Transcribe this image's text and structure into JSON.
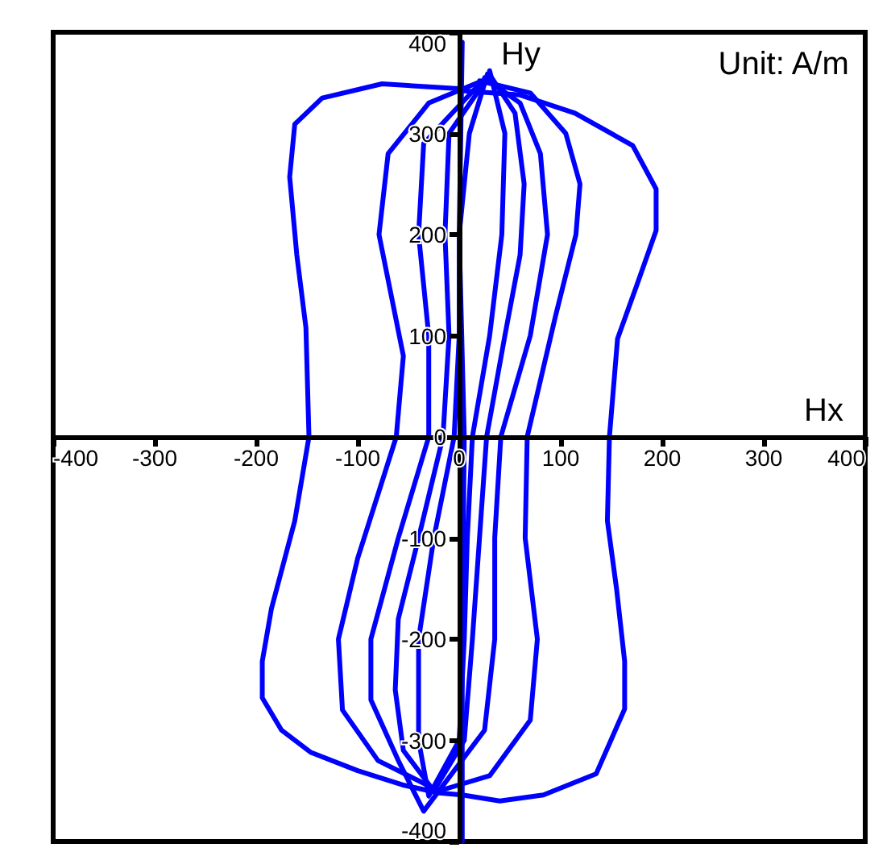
{
  "chart_data": {
    "type": "line",
    "xlabel": "Hx",
    "ylabel": "Hy",
    "annotations": [
      "Unit: A/m"
    ],
    "xlim": [
      -400,
      400
    ],
    "ylim": [
      -400,
      400
    ],
    "xticks": [
      -400,
      -300,
      -200,
      -100,
      0,
      100,
      200,
      300,
      400
    ],
    "yticks": [
      -400,
      -300,
      -200,
      -100,
      0,
      100,
      200,
      300,
      400
    ],
    "marker": "none",
    "line_style": "solid",
    "series": [
      {
        "color": "#0000ff",
        "x": [
          3,
          -76,
          -135,
          -162,
          -167,
          -160,
          -151,
          -148,
          -162,
          -185,
          -194,
          -194,
          -175,
          -146,
          -100,
          -56,
          -20,
          3,
          40,
          83,
          135,
          163,
          163,
          155,
          146,
          148,
          156,
          175,
          194,
          194,
          171,
          114,
          60,
          5
        ],
        "values": [
          344,
          349,
          335,
          309,
          257,
          180,
          108,
          0,
          -83,
          -170,
          -222,
          -258,
          -290,
          -312,
          -330,
          -344,
          -352,
          -354,
          -360,
          -354,
          -333,
          -269,
          -222,
          -150,
          -83,
          0,
          97,
          150,
          204,
          245,
          288,
          320,
          338,
          342
        ]
      },
      {
        "color": "#0000ff",
        "x": [
          20,
          70,
          105,
          119,
          115,
          95,
          67,
          65,
          77,
          70,
          30,
          -20,
          -80,
          -115,
          -119,
          -100,
          -62,
          -55,
          -79,
          -70,
          -30,
          18
        ],
        "values": [
          352,
          340,
          300,
          250,
          200,
          120,
          0,
          -100,
          -200,
          -280,
          -335,
          -350,
          -320,
          -270,
          -200,
          -120,
          0,
          80,
          200,
          280,
          330,
          350
        ]
      },
      {
        "color": "#0000ff",
        "x": [
          25,
          60,
          80,
          87,
          70,
          41,
          35,
          35,
          25,
          -35,
          -60,
          -87,
          -87,
          -60,
          -30,
          -30,
          -40,
          -35,
          23
        ],
        "values": [
          355,
          330,
          280,
          200,
          100,
          0,
          -100,
          -200,
          -290,
          -370,
          -320,
          -260,
          -200,
          -100,
          0,
          100,
          200,
          290,
          352
        ]
      },
      {
        "color": "#0000ff",
        "x": [
          30,
          55,
          64,
          60,
          45,
          27,
          20,
          13,
          5,
          -25,
          -55,
          -63,
          -60,
          -40,
          -16,
          -10,
          -14,
          -10,
          28
        ],
        "values": [
          358,
          320,
          250,
          180,
          100,
          0,
          -100,
          -200,
          -300,
          -350,
          -310,
          -250,
          -180,
          -100,
          0,
          100,
          200,
          300,
          355
        ]
      },
      {
        "color": "#0000ff",
        "x": [
          30,
          45,
          42,
          30,
          13,
          8,
          5,
          0,
          -30,
          -40,
          -40,
          -25,
          -5,
          0,
          0,
          10,
          28
        ],
        "values": [
          362,
          300,
          200,
          100,
          0,
          -100,
          -200,
          -300,
          -355,
          -300,
          -200,
          -100,
          0,
          100,
          200,
          300,
          359
        ]
      },
      {
        "color": "#0000ff",
        "x": [
          3,
          0,
          5,
          3,
          3
        ],
        "values": [
          390,
          200,
          0,
          -200,
          -400
        ]
      }
    ]
  }
}
